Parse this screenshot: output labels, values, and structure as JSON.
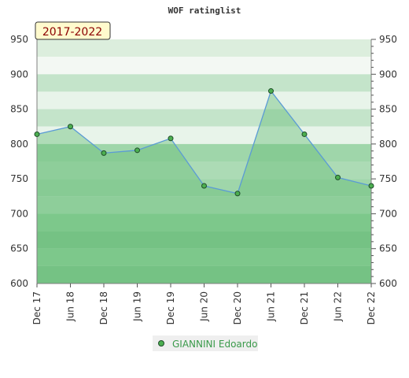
{
  "chart_data": {
    "type": "area",
    "title": "WOF ratinglist",
    "badge": "2017-2022",
    "x": [
      "Dec 17",
      "Jun 18",
      "Dec 18",
      "Jun 19",
      "Dec 19",
      "Jun 20",
      "Dec 20",
      "Jun 21",
      "Dec 21",
      "Jun 22",
      "Dec 22"
    ],
    "series": [
      {
        "name": "GIANNINI Edoardo",
        "values": [
          814,
          825,
          787,
          791,
          808,
          740,
          729,
          876,
          814,
          752,
          740
        ]
      }
    ],
    "ylim": [
      600,
      950
    ],
    "yticks": [
      600,
      650,
      700,
      750,
      800,
      850,
      900,
      950
    ],
    "yticks_right": [
      600,
      650,
      700,
      750,
      800,
      850,
      900,
      950
    ],
    "grid": true,
    "legend_position": "bottom",
    "colors": {
      "line": "#5b9bd5",
      "area": "#6abf7b",
      "marker": "#4caf50",
      "legend_text": "#3a9a4a",
      "badge_bg": "#fffacd",
      "badge_text": "#8b0000"
    }
  }
}
